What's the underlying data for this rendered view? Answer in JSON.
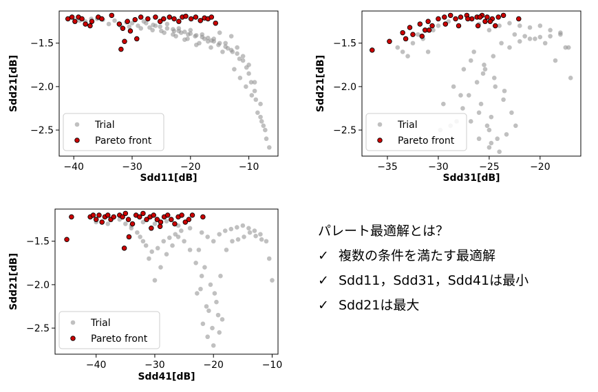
{
  "chart_data": [
    {
      "type": "scatter",
      "title": "",
      "xlabel": "Sdd11[dB]",
      "ylabel": "Sdd21[dB]",
      "xlim": [
        -42.5,
        -5
      ],
      "ylim": [
        -2.8,
        -1.13
      ],
      "xticks": [
        -40,
        -30,
        -20,
        -10
      ],
      "yticks": [
        -2.5,
        -2.0,
        -1.5
      ],
      "yticklabels": [
        "−2.5",
        "−2.0",
        "−1.5"
      ],
      "xticklabels": [
        "−40",
        "−30",
        "−20",
        "−10"
      ],
      "legend": {
        "location": "lower-left",
        "entries": [
          "Trial",
          "Pareto front"
        ]
      },
      "series": [
        {
          "name": "Trial",
          "color": "#8c8c8c",
          "x": [
            -38,
            -36,
            -34,
            -32,
            -30,
            -28,
            -26,
            -24,
            -22,
            -20,
            -18,
            -16,
            -14,
            -12,
            -11,
            -10,
            -9,
            -8,
            -7.5,
            -7,
            -6.5,
            -13,
            -15,
            -17,
            -19,
            -21,
            -23,
            -25,
            -27,
            -29,
            -31,
            -33,
            -35,
            -37,
            -39,
            -12.5,
            -11.5,
            -10.5,
            -9.5,
            -8.5,
            -14.5,
            -16.5,
            -18.5,
            -20.5,
            -22.5,
            -24.5,
            -26.5,
            -28.5,
            -30.5,
            -9,
            -8,
            -7.2,
            -10,
            -11,
            -12,
            -13,
            -14,
            -15,
            -16,
            -17,
            -18,
            -19,
            -20,
            -21,
            -22,
            -23,
            -8.8,
            -7.8,
            -9.6,
            -10.4,
            -11.6,
            -12.8,
            -13.6,
            -15.2,
            -16.4,
            -17.6,
            -19.2,
            -20.4,
            -21.6,
            -22.8,
            -24,
            -25.2,
            -26.4,
            -27.6
          ],
          "y": [
            -1.25,
            -1.22,
            -1.28,
            -1.3,
            -1.27,
            -1.25,
            -1.3,
            -1.28,
            -1.33,
            -1.35,
            -1.4,
            -1.45,
            -1.5,
            -1.55,
            -1.65,
            -1.75,
            -1.95,
            -2.2,
            -2.45,
            -2.6,
            -2.7,
            -1.42,
            -1.38,
            -1.48,
            -1.52,
            -1.46,
            -1.4,
            -1.36,
            -1.32,
            -1.3,
            -1.26,
            -1.24,
            -1.23,
            -1.22,
            -1.24,
            -1.8,
            -1.9,
            -2.0,
            -2.1,
            -2.3,
            -1.6,
            -1.55,
            -1.5,
            -1.45,
            -1.42,
            -1.38,
            -1.35,
            -1.33,
            -1.31,
            -2.05,
            -2.35,
            -2.5,
            -1.85,
            -1.7,
            -1.62,
            -1.58,
            -1.54,
            -1.5,
            -1.48,
            -1.44,
            -1.43,
            -1.41,
            -1.39,
            -1.37,
            -1.36,
            -1.34,
            -2.15,
            -2.4,
            -1.95,
            -1.78,
            -1.68,
            -1.6,
            -1.56,
            -1.52,
            -1.47,
            -1.45,
            -1.42,
            -1.4,
            -1.38,
            -1.36,
            -1.33,
            -1.31,
            -1.29,
            -1.27
          ]
        },
        {
          "name": "Pareto front",
          "color": "#cc0000",
          "x": [
            -41,
            -40.3,
            -39.8,
            -39.2,
            -38.6,
            -38,
            -37.2,
            -35.8,
            -35.2,
            -33.5,
            -32.2,
            -31.6,
            -30.8,
            -29.5,
            -28.5,
            -27.3,
            -26,
            -25.2,
            -24.6,
            -23.6,
            -22.8,
            -22,
            -21.4,
            -20.8,
            -19.9,
            -19.1,
            -18.3,
            -17.6,
            -17,
            -16.4,
            -15.7,
            -31.3,
            -30.3,
            -29.2,
            -36.9,
            -31.9
          ],
          "y": [
            -1.22,
            -1.2,
            -1.25,
            -1.2,
            -1.22,
            -1.28,
            -1.3,
            -1.2,
            -1.22,
            -1.18,
            -1.28,
            -1.33,
            -1.25,
            -1.23,
            -1.2,
            -1.22,
            -1.2,
            -1.25,
            -1.22,
            -1.2,
            -1.22,
            -1.25,
            -1.2,
            -1.19,
            -1.22,
            -1.2,
            -1.24,
            -1.21,
            -1.22,
            -1.2,
            -1.27,
            -1.48,
            -1.36,
            -1.45,
            -1.25,
            -1.57
          ]
        }
      ]
    },
    {
      "type": "scatter",
      "title": "",
      "xlabel": "Sdd31[dB]",
      "ylabel": "Sdd21[dB]",
      "xlim": [
        -37.5,
        -16
      ],
      "ylim": [
        -2.8,
        -1.13
      ],
      "xticks": [
        -35,
        -30,
        -25,
        -20
      ],
      "yticks": [
        -2.5,
        -2.0,
        -1.5
      ],
      "yticklabels": [
        "−2.5",
        "−2.0",
        "−1.5"
      ],
      "xticklabels": [
        "−35",
        "−30",
        "−25",
        "−20"
      ],
      "legend": {
        "location": "lower-left",
        "entries": [
          "Trial",
          "Pareto front"
        ]
      },
      "series": [
        {
          "name": "Trial",
          "color": "#8c8c8c",
          "x": [
            -30,
            -29,
            -28,
            -27,
            -26,
            -25,
            -24,
            -23,
            -22,
            -21,
            -20,
            -19,
            -18,
            -17.5,
            -17,
            -26.5,
            -25.5,
            -24.5,
            -23.5,
            -27.5,
            -28.5,
            -29.5,
            -31,
            -32,
            -33,
            -34,
            -26,
            -25,
            -24.2,
            -23.3,
            -22.4,
            -25.8,
            -24.8,
            -26.8,
            -27.8,
            -28.8,
            -29.8,
            -18.5,
            -19.5,
            -20.5,
            -21.5,
            -22.5,
            -23.8,
            -24.6,
            -25.4,
            -26.2,
            -27,
            -27.6,
            -28.2,
            -24,
            -25,
            -26,
            -23,
            -22,
            -21,
            -20,
            -19,
            -18,
            -17.2,
            -30.5,
            -31.5,
            -32.5,
            -33.5,
            -26.8,
            -25.6,
            -24.4,
            -23.6,
            -22.8,
            -25.2,
            -24.8
          ],
          "y": [
            -1.3,
            -1.25,
            -1.3,
            -1.22,
            -1.28,
            -1.35,
            -1.3,
            -1.27,
            -1.3,
            -1.32,
            -1.3,
            -1.35,
            -1.38,
            -1.55,
            -1.9,
            -1.6,
            -1.75,
            -1.9,
            -2.05,
            -1.8,
            -2.0,
            -2.2,
            -1.6,
            -1.4,
            -1.65,
            -1.55,
            -2.3,
            -2.5,
            -2.6,
            -2.55,
            -2.45,
            -2.2,
            -2.35,
            -2.4,
            -2.1,
            -2.45,
            -2.5,
            -1.7,
            -1.5,
            -1.45,
            -1.42,
            -1.4,
            -1.5,
            -1.65,
            -1.8,
            -1.95,
            -2.1,
            -2.25,
            -2.4,
            -2.75,
            -2.7,
            -2.6,
            -1.55,
            -1.48,
            -1.45,
            -1.43,
            -1.42,
            -1.4,
            -1.55,
            -1.35,
            -1.45,
            -1.5,
            -1.6,
            -1.7,
            -1.85,
            -2.0,
            -2.15,
            -2.3,
            -2.45,
            -2.65
          ]
        },
        {
          "name": "Pareto front",
          "color": "#cc0000",
          "x": [
            -36.5,
            -34.8,
            -33.5,
            -33.2,
            -32.8,
            -32.5,
            -31.8,
            -31.3,
            -31,
            -30.6,
            -30,
            -29.4,
            -28.8,
            -28.3,
            -27.8,
            -27.2,
            -26.7,
            -26.2,
            -25.7,
            -25.2,
            -24.7,
            -24.1,
            -23.6,
            -22.1,
            -30.9,
            -29.3,
            -26.1,
            -25.4,
            -24.4,
            -28,
            -27.1,
            -25.9,
            -24.9,
            -31.6
          ],
          "y": [
            -1.58,
            -1.48,
            -1.38,
            -1.45,
            -1.32,
            -1.4,
            -1.28,
            -1.35,
            -1.25,
            -1.3,
            -1.22,
            -1.2,
            -1.18,
            -1.22,
            -1.2,
            -1.18,
            -1.22,
            -1.2,
            -1.18,
            -1.2,
            -1.22,
            -1.2,
            -1.18,
            -1.22,
            -1.35,
            -1.28,
            -1.3,
            -1.25,
            -1.3,
            -1.3,
            -1.22,
            -1.2,
            -1.25,
            -1.42
          ]
        }
      ]
    },
    {
      "type": "scatter",
      "title": "",
      "xlabel": "Sdd41[dB]",
      "ylabel": "Sdd21[dB]",
      "xlim": [
        -47,
        -9
      ],
      "ylim": [
        -2.8,
        -1.13
      ],
      "xticks": [
        -40,
        -30,
        -20,
        -10
      ],
      "yticks": [
        -2.5,
        -2.0,
        -1.5
      ],
      "yticklabels": [
        "−2.5",
        "−2.0",
        "−1.5"
      ],
      "xticklabels": [
        "−40",
        "−30",
        "−20",
        "−10"
      ],
      "legend": {
        "location": "lower-left",
        "entries": [
          "Trial",
          "Pareto front"
        ]
      },
      "series": [
        {
          "name": "Trial",
          "color": "#8c8c8c",
          "x": [
            -40,
            -38,
            -36,
            -34,
            -32,
            -30,
            -28,
            -26,
            -24,
            -22,
            -21,
            -20,
            -19,
            -18,
            -17,
            -16,
            -15,
            -14,
            -13,
            -12,
            -11,
            -10.5,
            -10,
            -22.5,
            -21.5,
            -20.5,
            -19.5,
            -18.5,
            -21,
            -20,
            -19,
            -22,
            -23,
            -24,
            -25,
            -26,
            -27,
            -28,
            -29,
            -30,
            -31,
            -32,
            -33,
            -34,
            -35,
            -20.8,
            -19.8,
            -18.8,
            -21.8,
            -22.8,
            -17.8,
            -16.8,
            -15.8,
            -14.8,
            -13.8,
            -12.8,
            -11.8,
            -25.5,
            -26.5,
            -27.5,
            -28.5,
            -29.5,
            -30.5,
            -31.5,
            -32.5,
            -19.2,
            -20.2,
            -21.2,
            -22.2
          ],
          "y": [
            -1.28,
            -1.3,
            -1.25,
            -1.32,
            -1.28,
            -1.3,
            -1.27,
            -1.32,
            -1.35,
            -1.4,
            -1.45,
            -1.5,
            -1.42,
            -1.38,
            -1.36,
            -1.34,
            -1.32,
            -1.35,
            -1.38,
            -1.42,
            -1.5,
            -1.7,
            -1.95,
            -1.6,
            -1.8,
            -2.0,
            -2.2,
            -2.4,
            -2.6,
            -2.7,
            -2.55,
            -1.9,
            -1.75,
            -1.6,
            -1.5,
            -1.45,
            -1.55,
            -1.65,
            -1.8,
            -1.95,
            -1.7,
            -1.5,
            -1.4,
            -1.35,
            -1.3,
            -2.3,
            -2.1,
            -1.9,
            -2.45,
            -2.1,
            -1.6,
            -1.5,
            -1.48,
            -1.45,
            -1.4,
            -1.44,
            -1.48,
            -1.38,
            -1.42,
            -1.46,
            -1.5,
            -1.58,
            -1.62,
            -1.55,
            -1.45,
            -2.35,
            -2.5,
            -2.25,
            -2.05
          ]
        },
        {
          "name": "Pareto front",
          "color": "#cc0000",
          "x": [
            -45,
            -44.2,
            -41,
            -40.5,
            -40,
            -39.5,
            -39,
            -38.5,
            -38,
            -37.5,
            -37,
            -36,
            -35.5,
            -35,
            -34.5,
            -33.8,
            -33.2,
            -32.6,
            -32,
            -31.4,
            -30.8,
            -30.2,
            -29.6,
            -29,
            -28.4,
            -27.8,
            -27.2,
            -26.6,
            -26,
            -25.4,
            -24.8,
            -24.2,
            -23.6,
            -21.8,
            -35.2,
            -34.4,
            -30.6,
            -29.1
          ],
          "y": [
            -1.48,
            -1.22,
            -1.22,
            -1.2,
            -1.25,
            -1.2,
            -1.28,
            -1.22,
            -1.2,
            -1.25,
            -1.22,
            -1.2,
            -1.22,
            -1.18,
            -1.25,
            -1.3,
            -1.2,
            -1.22,
            -1.18,
            -1.25,
            -1.22,
            -1.2,
            -1.25,
            -1.28,
            -1.22,
            -1.2,
            -1.25,
            -1.3,
            -1.22,
            -1.2,
            -1.28,
            -1.25,
            -1.2,
            -1.22,
            -1.58,
            -1.45,
            -1.35,
            -1.33
          ]
        }
      ]
    }
  ],
  "notes": {
    "title": "パレート最適解とは？",
    "items": [
      "複数の条件を満たす最適解",
      "Sdd11，Sdd31，Sdd41は最小",
      "Sdd21は最大"
    ],
    "check_mark": "✓"
  }
}
